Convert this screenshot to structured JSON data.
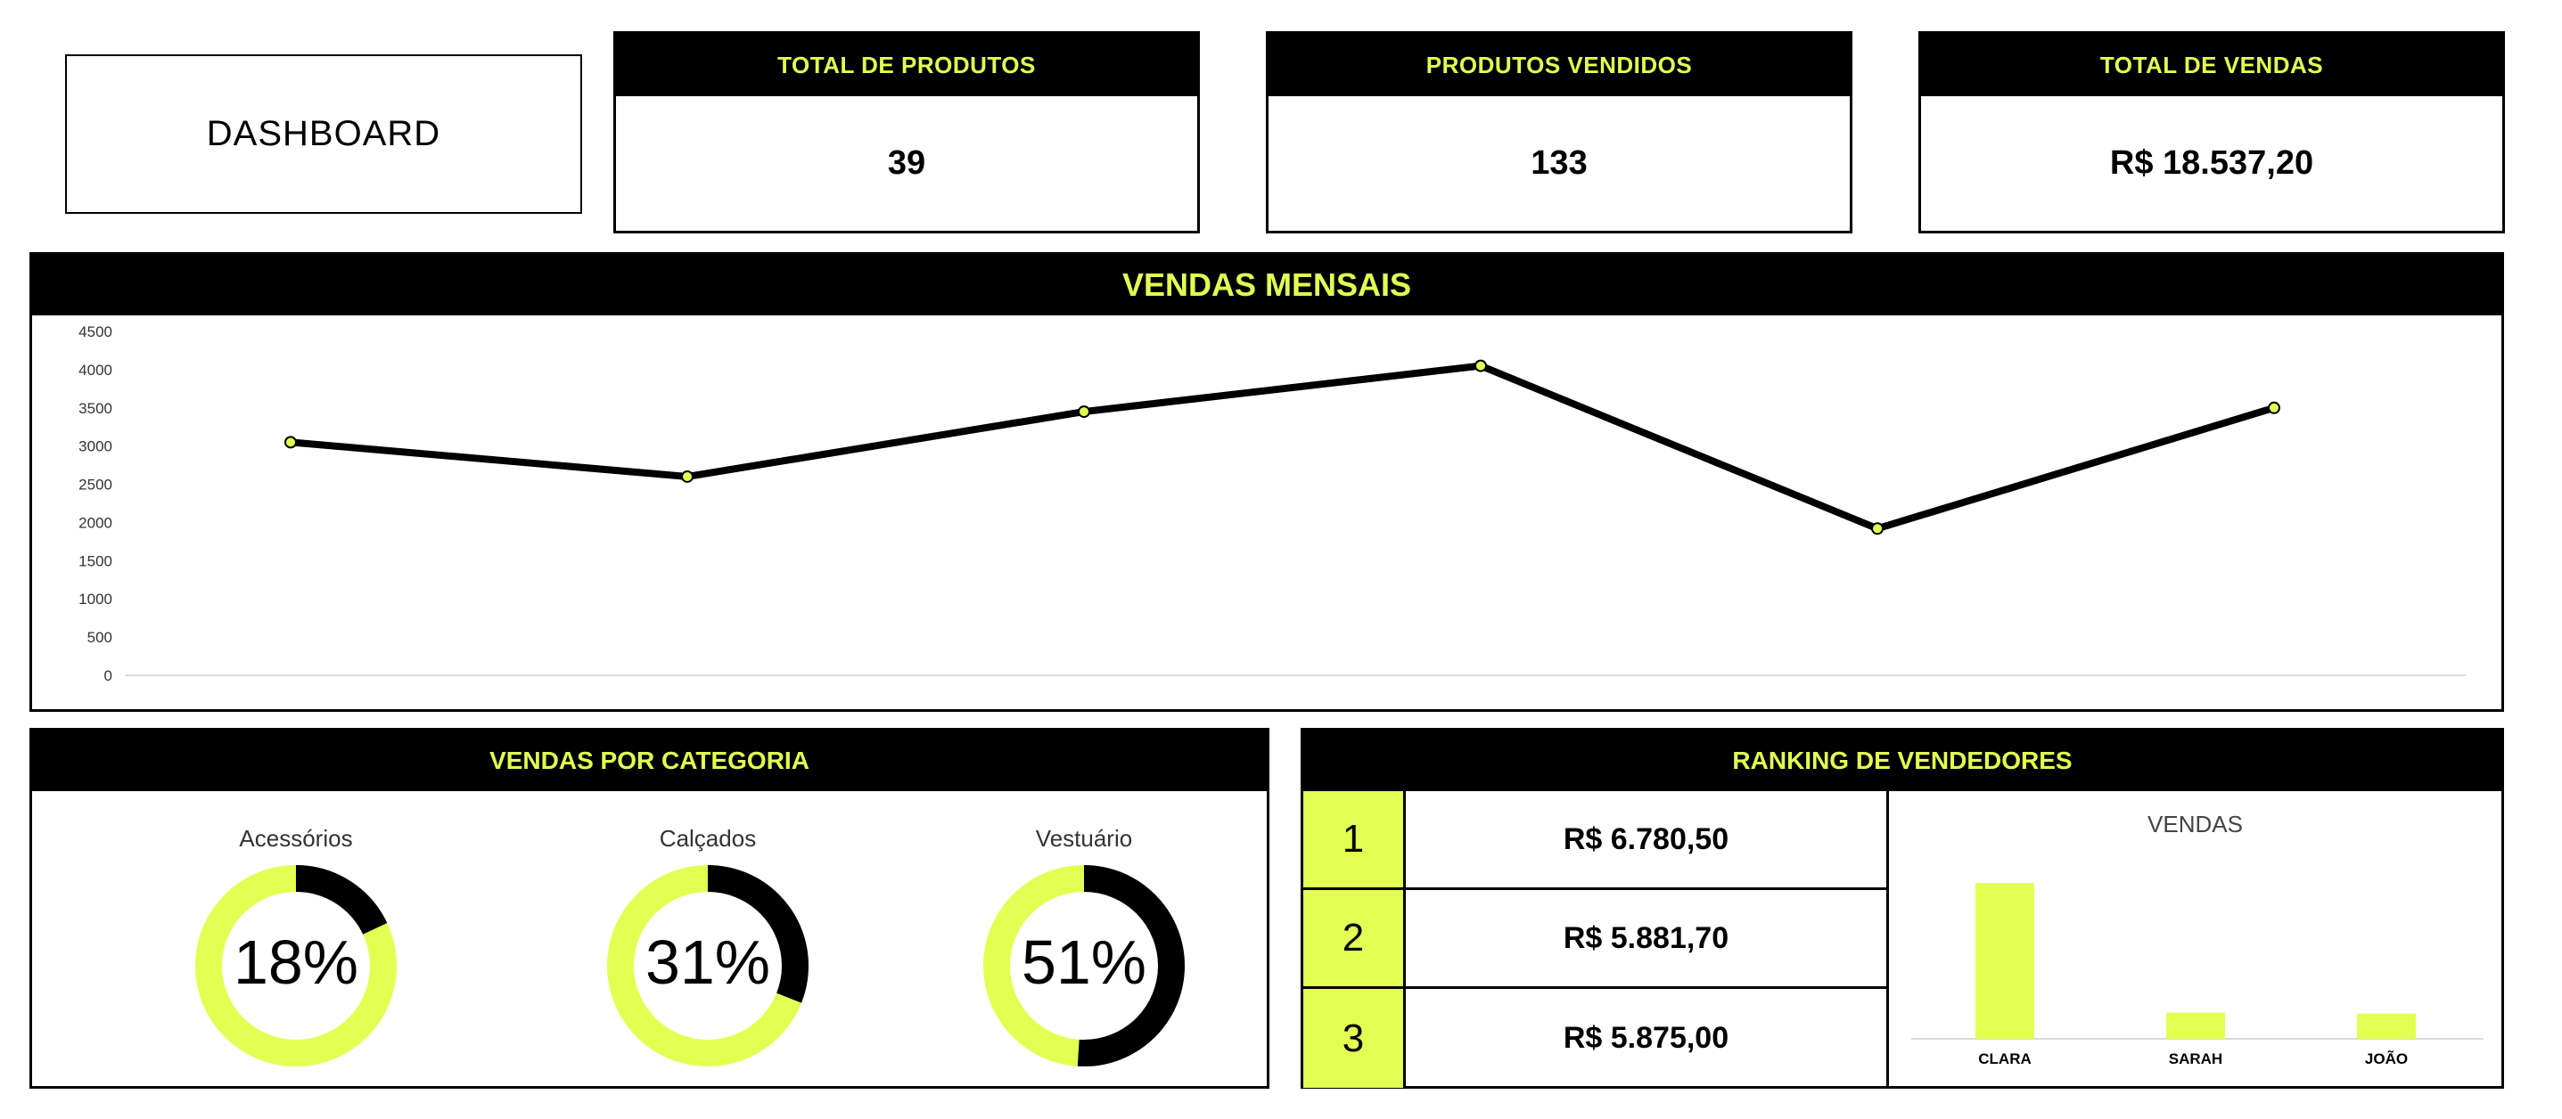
{
  "dashboard": {
    "title": "DASHBOARD"
  },
  "kpis": [
    {
      "label": "TOTAL DE PRODUTOS",
      "value": "39"
    },
    {
      "label": "PRODUTOS VENDIDOS",
      "value": "133"
    },
    {
      "label": "TOTAL DE VENDAS",
      "value": "R$ 18.537,20"
    }
  ],
  "colors": {
    "accent": "#e3ff52",
    "dark": "#000000",
    "donut_base": "#e3ff52",
    "donut_fill": "#000000"
  },
  "chart_data": [
    {
      "type": "line",
      "title": "VENDAS MENSAIS",
      "x": [
        1,
        2,
        3,
        4,
        5,
        6
      ],
      "values": [
        3050,
        2600,
        3450,
        4050,
        1920,
        3500
      ],
      "ylim": [
        0,
        4500
      ],
      "yticks": [
        0,
        500,
        1000,
        1500,
        2000,
        2500,
        3000,
        3500,
        4000,
        4500
      ],
      "xlabel": "",
      "ylabel": "",
      "grid": false
    },
    {
      "type": "pie",
      "title": "VENDAS POR CATEGORIA",
      "slices": [
        {
          "label": "Acessórios",
          "value": 18,
          "display": "18%"
        },
        {
          "label": "Calçados",
          "value": 31,
          "display": "31%"
        },
        {
          "label": "Vestuário",
          "value": 51,
          "display": "51%"
        }
      ]
    },
    {
      "type": "bar",
      "title": "VENDAS",
      "categories": [
        "CLARA",
        "SARAH",
        "JOÃO"
      ],
      "values": [
        6780.5,
        5881.7,
        5875.0
      ],
      "ylim": [
        5700,
        6800
      ]
    }
  ],
  "ranking": {
    "title": "RANKING DE VENDEDORES",
    "rows": [
      {
        "pos": "1",
        "value": "R$ 6.780,50"
      },
      {
        "pos": "2",
        "value": "R$ 5.881,70"
      },
      {
        "pos": "3",
        "value": "R$ 5.875,00"
      }
    ]
  }
}
